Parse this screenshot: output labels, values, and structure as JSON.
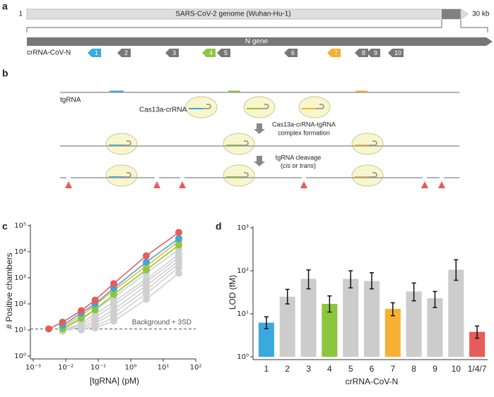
{
  "panel_labels": [
    "a",
    "b",
    "c",
    "d"
  ],
  "panel_a": {
    "start_label": "1",
    "end_label": "30 kb",
    "genome_label": "SARS-CoV-2 genome (Wuhan-Hu-1)",
    "gene_label": "N gene",
    "crrna_label": "crRNA-CoV-N",
    "crrnas": [
      {
        "label": "1",
        "color": "#3aa9e0"
      },
      {
        "label": "2",
        "color": "#777777"
      },
      {
        "label": "3",
        "color": "#777777"
      },
      {
        "label": "4",
        "color": "#8cc63f"
      },
      {
        "label": "5",
        "color": "#777777"
      },
      {
        "label": "6",
        "color": "#777777"
      },
      {
        "label": "7",
        "color": "#f6b133"
      },
      {
        "label": "8",
        "color": "#777777"
      },
      {
        "label": "9",
        "color": "#777777"
      },
      {
        "label": "10",
        "color": "#777777"
      }
    ]
  },
  "panel_b": {
    "target_label": "tgRNA",
    "complex_label": "Cas13a-crRNA",
    "step1": [
      "Cas13a-crRNA-tgRNA",
      "complex formation"
    ],
    "step2": "tgRNA cleavage",
    "step2_note": [
      "(",
      "cis",
      " or ",
      "trans",
      ")"
    ]
  },
  "chart_data": [
    {
      "type": "line",
      "xlabel": "[tgRNA] (pM)",
      "ylabel": "# Positive chambers",
      "xscale": "log",
      "yscale": "log",
      "x": [
        0.003,
        0.008,
        0.03,
        0.08,
        0.3,
        3,
        30
      ],
      "xlim": [
        0.001,
        100
      ],
      "ylim": [
        1,
        100000
      ],
      "xticks": [
        {
          "value": 0.001,
          "label": "10⁻³"
        },
        {
          "value": 0.01,
          "label": "10⁻²"
        },
        {
          "value": 0.1,
          "label": "10⁻¹"
        },
        {
          "value": 1,
          "label": "10⁰"
        },
        {
          "value": 10,
          "label": "10¹"
        },
        {
          "value": 100,
          "label": "10²"
        }
      ],
      "yticks": [
        {
          "value": 1,
          "label": "10⁰"
        },
        {
          "value": 10,
          "label": "10¹"
        },
        {
          "value": 100,
          "label": "10²"
        },
        {
          "value": 1000,
          "label": "10³"
        },
        {
          "value": 10000,
          "label": "10⁴"
        },
        {
          "value": 100000,
          "label": "10⁵"
        }
      ],
      "series": [
        {
          "color": "#cfcfcf",
          "values": [
            null,
            11,
            25,
            60,
            180,
            1500,
            12000
          ]
        },
        {
          "color": "#cfcfcf",
          "values": [
            null,
            10,
            18,
            40,
            120,
            900,
            8000
          ]
        },
        {
          "color": "#cfcfcf",
          "values": [
            null,
            10,
            15,
            30,
            90,
            700,
            6000
          ]
        },
        {
          "color": "#cfcfcf",
          "values": [
            null,
            9,
            13,
            22,
            60,
            500,
            4500
          ]
        },
        {
          "color": "#cfcfcf",
          "values": [
            null,
            null,
            11,
            18,
            45,
            350,
            3500
          ]
        },
        {
          "color": "#cfcfcf",
          "values": [
            null,
            null,
            10,
            14,
            30,
            250,
            2500
          ]
        },
        {
          "color": "#cfcfcf",
          "values": [
            null,
            null,
            null,
            12,
            22,
            150,
            1500
          ]
        },
        {
          "color": "#f6b133",
          "values": [
            null,
            13,
            35,
            90,
            330,
            2800,
            25000
          ]
        },
        {
          "color": "#8cc63f",
          "values": [
            null,
            11,
            28,
            60,
            230,
            2000,
            18000
          ]
        },
        {
          "color": "#3aa9e0",
          "values": [
            null,
            15,
            45,
            100,
            400,
            4000,
            32000
          ]
        },
        {
          "color": "#e85b5b",
          "values": [
            11,
            20,
            55,
            140,
            600,
            7000,
            55000
          ]
        }
      ],
      "threshold": {
        "value": 11,
        "label": "Background + 3SD"
      }
    },
    {
      "type": "bar",
      "xlabel": "crRNA-CoV-N",
      "ylabel": "LOD (fM)",
      "yscale": "log",
      "categories": [
        "1",
        "2",
        "3",
        "4",
        "5",
        "6",
        "7",
        "8",
        "9",
        "10",
        "1/4/7"
      ],
      "values": [
        6.2,
        25,
        65,
        17,
        65,
        58,
        13,
        33,
        23,
        106,
        3.8
      ],
      "lower": [
        4.5,
        17,
        38,
        11,
        40,
        38,
        9,
        20,
        14,
        60,
        2.7
      ],
      "upper": [
        8.5,
        37,
        105,
        26,
        100,
        90,
        18,
        52,
        33,
        180,
        5.2
      ],
      "colors": [
        "#3aa9e0",
        "#cccccc",
        "#cccccc",
        "#8cc63f",
        "#cccccc",
        "#cccccc",
        "#f6b133",
        "#cccccc",
        "#cccccc",
        "#cccccc",
        "#e85b5b"
      ],
      "ylim": [
        1,
        1000
      ],
      "yticks": [
        {
          "value": 1,
          "label": "10⁰"
        },
        {
          "value": 10,
          "label": "10¹"
        },
        {
          "value": 100,
          "label": "10²"
        },
        {
          "value": 1000,
          "label": "10³"
        }
      ]
    }
  ]
}
